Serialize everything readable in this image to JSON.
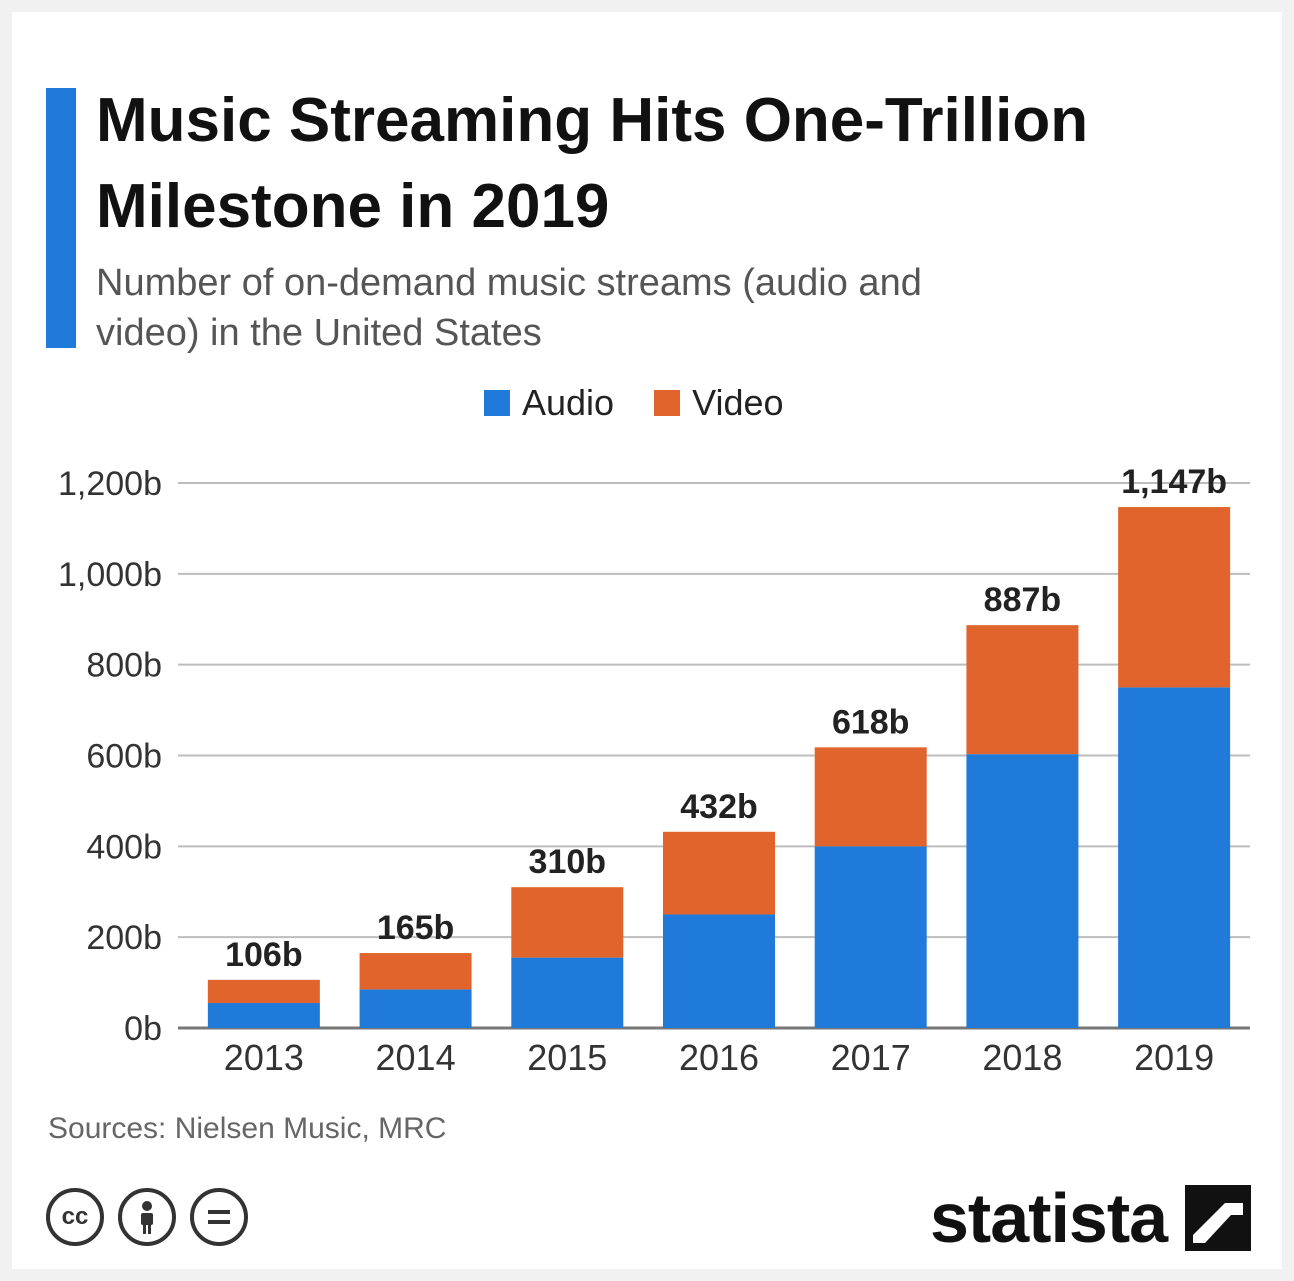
{
  "title": "Music Streaming Hits One-Trillion Milestone in 2019",
  "subtitle": "Number of on-demand music streams (audio and video) in the United States",
  "source": "Sources: Nielsen Music, MRC",
  "brand": "statista",
  "license_icons": [
    "cc",
    "by",
    "nd"
  ],
  "colors": {
    "accent": "#1f7ad9",
    "audio": "#1f7ad9",
    "video": "#e0642b"
  },
  "chart_data": {
    "type": "bar",
    "stacked": true,
    "title": "Music Streaming Hits One-Trillion Milestone in 2019",
    "categories": [
      "2013",
      "2014",
      "2015",
      "2016",
      "2017",
      "2018",
      "2019"
    ],
    "series": [
      {
        "name": "Audio",
        "color": "#1f7ad9",
        "values": [
          55,
          85,
          155,
          250,
          400,
          603,
          750
        ]
      },
      {
        "name": "Video",
        "color": "#e0642b",
        "values": [
          51,
          80,
          155,
          182,
          218,
          284,
          397
        ]
      }
    ],
    "totals": [
      106,
      165,
      310,
      432,
      618,
      887,
      1147
    ],
    "total_labels": [
      "106b",
      "165b",
      "310b",
      "432b",
      "618b",
      "887b",
      "1,147b"
    ],
    "yticks": [
      0,
      200,
      400,
      600,
      800,
      1000,
      1200
    ],
    "ytick_labels": [
      "0b",
      "200b",
      "400b",
      "600b",
      "800b",
      "1,000b",
      "1,200b"
    ],
    "ylim": [
      0,
      1200
    ],
    "grid": true,
    "legend_position": "top-center"
  }
}
